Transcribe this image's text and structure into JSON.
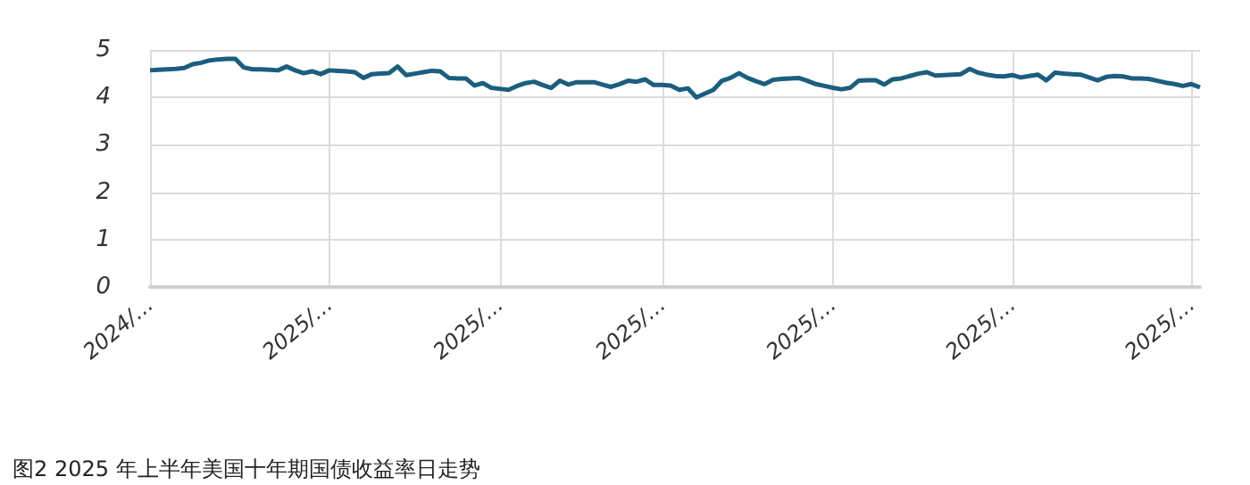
{
  "chart_data": {
    "type": "line",
    "title": "图2 2025 年上半年美国十年期国债收益率日走势",
    "categories": [
      "2024/…",
      null,
      null,
      null,
      null,
      null,
      null,
      null,
      null,
      null,
      null,
      null,
      null,
      null,
      null,
      null,
      null,
      null,
      null,
      null,
      null,
      "2025/…",
      null,
      null,
      null,
      null,
      null,
      null,
      null,
      null,
      null,
      null,
      null,
      null,
      null,
      null,
      null,
      null,
      null,
      null,
      null,
      "2025/…",
      null,
      null,
      null,
      null,
      null,
      null,
      null,
      null,
      null,
      null,
      null,
      null,
      null,
      null,
      null,
      null,
      null,
      null,
      "2025/…",
      null,
      null,
      null,
      null,
      null,
      null,
      null,
      null,
      null,
      null,
      null,
      null,
      null,
      null,
      null,
      null,
      null,
      null,
      null,
      "2025/…",
      null,
      null,
      null,
      null,
      null,
      null,
      null,
      null,
      null,
      null,
      null,
      null,
      null,
      null,
      null,
      null,
      null,
      null,
      null,
      null,
      "2025/…",
      null,
      null,
      null,
      null,
      null,
      null,
      null,
      null,
      null,
      null,
      null,
      null,
      null,
      null,
      null,
      null,
      null,
      null,
      null,
      null,
      "2025/…",
      null
    ],
    "series": [
      {
        "color": "#1b5e7e",
        "values": [
          4.57,
          4.58,
          4.59,
          4.6,
          4.62,
          4.7,
          4.73,
          4.78,
          4.8,
          4.81,
          4.81,
          4.63,
          4.59,
          4.59,
          4.58,
          4.57,
          4.65,
          4.57,
          4.51,
          4.55,
          4.49,
          4.57,
          4.56,
          4.55,
          4.53,
          4.41,
          4.49,
          4.5,
          4.51,
          4.65,
          4.47,
          4.5,
          4.53,
          4.56,
          4.55,
          4.41,
          4.4,
          4.4,
          4.25,
          4.3,
          4.2,
          4.18,
          4.16,
          4.24,
          4.3,
          4.33,
          4.26,
          4.2,
          4.35,
          4.27,
          4.32,
          4.32,
          4.32,
          4.27,
          4.22,
          4.28,
          4.35,
          4.33,
          4.38,
          4.26,
          4.26,
          4.25,
          4.16,
          4.19,
          4.0,
          4.08,
          4.16,
          4.35,
          4.41,
          4.51,
          4.41,
          4.34,
          4.28,
          4.37,
          4.39,
          4.4,
          4.41,
          4.35,
          4.28,
          4.24,
          4.2,
          4.17,
          4.2,
          4.35,
          4.36,
          4.36,
          4.27,
          4.38,
          4.4,
          4.45,
          4.5,
          4.53,
          4.46,
          4.47,
          4.48,
          4.49,
          4.6,
          4.52,
          4.48,
          4.45,
          4.44,
          4.47,
          4.42,
          4.45,
          4.48,
          4.36,
          4.52,
          4.5,
          4.49,
          4.48,
          4.42,
          4.36,
          4.43,
          4.45,
          4.44,
          4.4,
          4.4,
          4.39,
          4.35,
          4.31,
          4.28,
          4.24,
          4.28,
          4.21
        ]
      }
    ],
    "ylim": [
      0,
      5
    ],
    "yticks": [
      0,
      1,
      2,
      3,
      4,
      5
    ],
    "grid": true,
    "marker": "none",
    "line_style": "solid"
  }
}
